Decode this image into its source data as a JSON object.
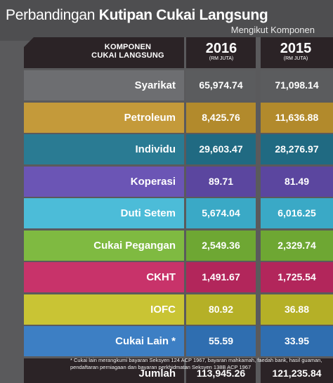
{
  "header": {
    "title_light": "Perbandingan ",
    "title_bold": "Kutipan Cukai Langsung",
    "subtitle": "Mengikut Komponen"
  },
  "table": {
    "column_header": "KOMPONEN\nCUKAI LANGSUNG",
    "years": [
      {
        "year": "2016",
        "unit": "(RM JUTA)"
      },
      {
        "year": "2015",
        "unit": "(RM JUTA)"
      }
    ],
    "rows": [
      {
        "label": "Syarikat",
        "v2016": "65,974.74",
        "v2015": "71,098.14",
        "label_bg": "#6d6e71",
        "cell_bg": "#5b5c5e"
      },
      {
        "label": "Petroleum",
        "v2016": "8,425.76",
        "v2015": "11,636.88",
        "label_bg": "#c49a3a",
        "cell_bg": "#b28a2c"
      },
      {
        "label": "Individu",
        "v2016": "29,603.47",
        "v2015": "28,276.97",
        "label_bg": "#2a7b93",
        "cell_bg": "#206a82"
      },
      {
        "label": "Koperasi",
        "v2016": "89.71",
        "v2015": "81.49",
        "label_bg": "#6b55b5",
        "cell_bg": "#5b469f"
      },
      {
        "label": "Duti Setem",
        "v2016": "5,674.04",
        "v2015": "6,016.25",
        "label_bg": "#4cbcd8",
        "cell_bg": "#3aa9c6"
      },
      {
        "label": "Cukai Pegangan",
        "v2016": "2,549.36",
        "v2015": "2,329.74",
        "label_bg": "#7fba41",
        "cell_bg": "#6ea733"
      },
      {
        "label": "CKHT",
        "v2016": "1,491.67",
        "v2015": "1,725.54",
        "label_bg": "#c8336a",
        "cell_bg": "#b2265b"
      },
      {
        "label": "IOFC",
        "v2016": "80.92",
        "v2015": "36.88",
        "label_bg": "#c9c434",
        "cell_bg": "#b5b027"
      },
      {
        "label": "Cukai Lain *",
        "v2016": "55.59",
        "v2015": "33.95",
        "label_bg": "#3d7fc4",
        "cell_bg": "#2f6eb0"
      }
    ],
    "total": {
      "label": "Jumlah",
      "v2016": "113,945.26",
      "v2015": "121,235.84"
    }
  },
  "footnote": "* Cukai lain merangkumi bayaran Seksyen 124 ACP 1967, bayaran mahkamah, faedah bank, hasil guaman, pendaftaran perniagaan dan bayaran perkhidmatan Seksyen 138B ACP 1967"
}
